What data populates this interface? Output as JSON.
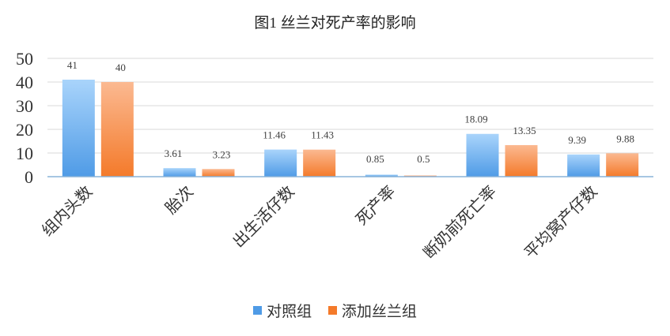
{
  "chart_data": {
    "type": "bar",
    "title": "图1 丝兰对死产率的影响",
    "categories": [
      "组内头数",
      "胎次",
      "出生活仔数",
      "死产率",
      "断奶前死亡率",
      "平均窝产仔数"
    ],
    "series": [
      {
        "name": "对照组",
        "values": [
          41,
          3.61,
          11.46,
          0.85,
          18.09,
          9.39
        ],
        "color": "#4f9be6",
        "color_light": "#a9d4fb"
      },
      {
        "name": "添加丝兰组",
        "values": [
          40,
          3.23,
          11.43,
          0.5,
          13.35,
          9.88
        ],
        "color": "#f47a2a",
        "color_light": "#fbb991"
      }
    ],
    "data_labels": [
      [
        "41",
        "3.61",
        "11.46",
        "0.85",
        "18.09",
        "9.39"
      ],
      [
        "40",
        "3.23",
        "11.43",
        "0.5",
        "13.35",
        "9.88"
      ]
    ],
    "yticks": [
      "0",
      "10",
      "20",
      "30",
      "40",
      "50"
    ],
    "ylim": [
      0,
      50
    ],
    "grid": true,
    "legend_position": "bottom",
    "xlabel": "",
    "ylabel": ""
  }
}
